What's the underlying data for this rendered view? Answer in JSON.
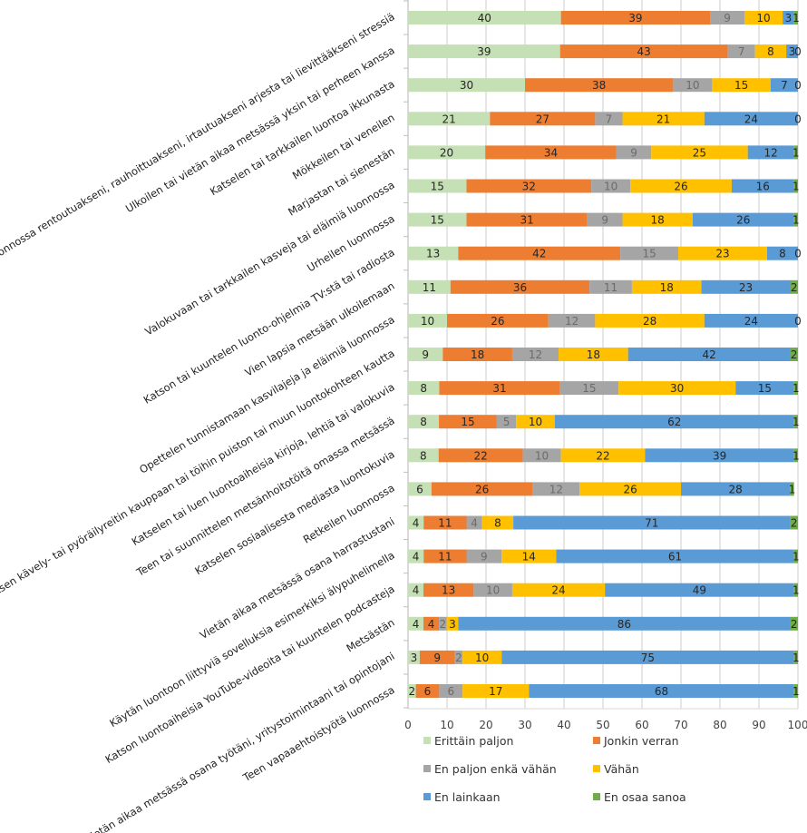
{
  "chart_data": {
    "type": "bar",
    "orientation": "horizontal",
    "stacked": true,
    "categories": [
      "Oleilen luonnossa rentoutuakseni, rauhoittuakseni, irtautuakseni arjesta tai lievittääkseni stressiä",
      "Ulkoilen tai vietän aikaa metsässä yksin tai perheen kanssa",
      "Katselen tai tarkkailen luontoa ikkunasta",
      "Mökkeilen tai veneilen",
      "Marjastan tai sienestän",
      "Valokuvaan tai tarkkailen kasveja tai eläimiä luonnossa",
      "Urheilen luonnossa",
      "Katson tai kuuntelen luonto-ohjelmia TV:stä tai radiosta",
      "Vien lapsia metsään ulkoilemaan",
      "Opettelen tunnistamaan kasvilajeja ja eläimiä luonnossa",
      "Valitsen kävely- tai pyöräilyreitin kauppaan tai töihin puiston tai muun luontokohteen kautta",
      "Katselen tai luen luontoaiheisia kirjoja, lehtiä tai valokuvia",
      "Teen tai suunnittelen metsänhoitotöitä omassa metsässä",
      "Katselen sosiaalisesta mediasta luontokuvia",
      "Retkeilen luonnossa",
      "Vietän aikaa metsässä osana harrastustani",
      "Käytän luontoon liittyviä sovelluksia esimerkiksi älypuhelimella",
      "Katson luontoaiheisia YouTube-videoita tai kuuntelen podcasteja",
      "Metsästän",
      "Vietän aikaa metsässä osana työtäni, yritystoimintaani tai opintojani",
      "Teen vapaaehtoistyötä luonnossa"
    ],
    "series": [
      {
        "name": "Erittäin paljon",
        "color": "#C5E0B4",
        "values": [
          40,
          39,
          30,
          21,
          20,
          15,
          15,
          13,
          11,
          10,
          9,
          8,
          8,
          8,
          6,
          4,
          4,
          4,
          4,
          3,
          2
        ]
      },
      {
        "name": "Jonkin verran",
        "color": "#ED7D31",
        "values": [
          39,
          43,
          38,
          27,
          34,
          32,
          31,
          42,
          36,
          26,
          18,
          31,
          15,
          22,
          26,
          11,
          11,
          13,
          4,
          9,
          6
        ]
      },
      {
        "name": "En paljon enkä vähän",
        "color": "#A5A5A5",
        "values": [
          9,
          7,
          10,
          7,
          9,
          10,
          9,
          15,
          11,
          12,
          12,
          15,
          5,
          10,
          12,
          4,
          9,
          10,
          2,
          2,
          6
        ]
      },
      {
        "name": "Vähän",
        "color": "#FFC000",
        "values": [
          10,
          8,
          15,
          21,
          25,
          26,
          18,
          23,
          18,
          28,
          18,
          30,
          10,
          22,
          26,
          8,
          14,
          24,
          3,
          10,
          17
        ]
      },
      {
        "name": "En lainkaan",
        "color": "#5B9BD5",
        "values": [
          3,
          3,
          7,
          24,
          12,
          16,
          26,
          8,
          23,
          24,
          42,
          15,
          62,
          39,
          28,
          71,
          61,
          49,
          86,
          75,
          68
        ]
      },
      {
        "name": "En osaa sanoa",
        "color": "#70AD47",
        "values": [
          1,
          0,
          0,
          0,
          1,
          1,
          1,
          0,
          2,
          0,
          2,
          1,
          1,
          1,
          1,
          2,
          1,
          1,
          2,
          1,
          1
        ]
      }
    ],
    "xlim": [
      0,
      100
    ],
    "xticks": [
      "0",
      "10",
      "20",
      "30",
      "40",
      "50",
      "60",
      "70",
      "80",
      "90",
      "100"
    ],
    "grid": true,
    "legend_position": "bottom",
    "data_labels": true
  }
}
